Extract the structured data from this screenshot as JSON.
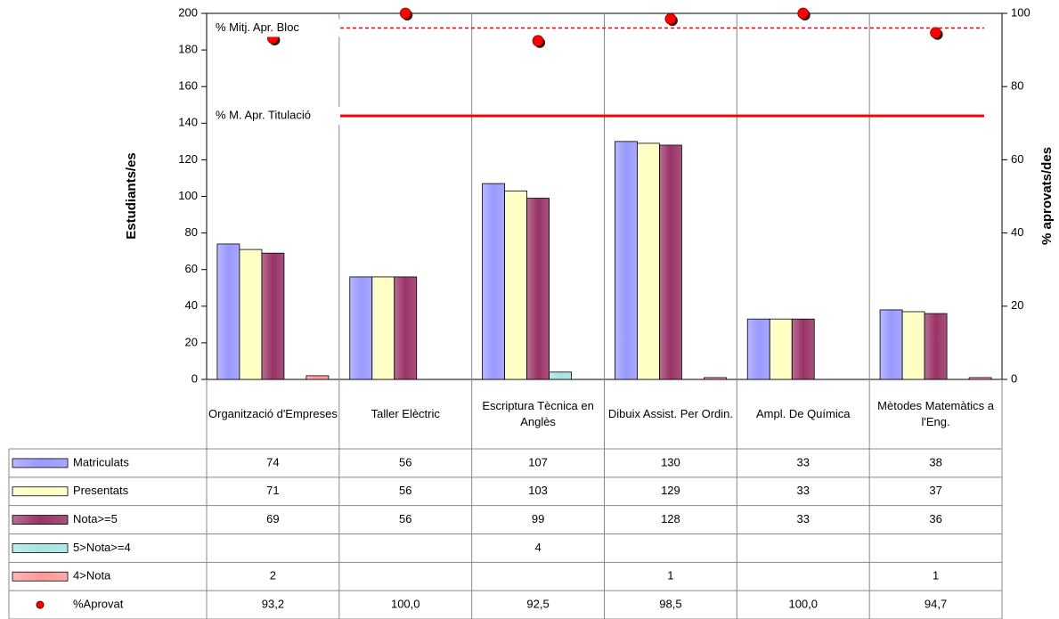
{
  "chart_data": {
    "type": "bar",
    "categories": [
      "Organització d'Empreses",
      "Taller Elèctric",
      "Escriptura Tècnica en Anglès",
      "Dibuix Assist. Per Ordin.",
      "Ampl. De Química",
      "Mètodes Matemàtics a l'Eng."
    ],
    "series": [
      {
        "name": "Matriculats",
        "color": "#9999ff",
        "values": [
          74,
          56,
          107,
          130,
          33,
          38
        ]
      },
      {
        "name": "Presentats",
        "color": "#ffffc0",
        "values": [
          71,
          56,
          103,
          129,
          33,
          37
        ]
      },
      {
        "name": "Nota>=5",
        "color": "#993366",
        "values": [
          69,
          56,
          99,
          128,
          33,
          36
        ]
      },
      {
        "name": "5>Nota>=4",
        "color": "#a6e3e3",
        "values": [
          null,
          null,
          4,
          null,
          null,
          null
        ]
      },
      {
        "name": "4>Nota",
        "color": "#ff9999",
        "values": [
          2,
          null,
          null,
          1,
          null,
          1
        ]
      },
      {
        "name": "%Aprovat",
        "color": "#ff0000",
        "type": "scatter",
        "axis": "y2",
        "values": [
          93.2,
          100,
          92.5,
          98.5,
          100,
          94.7
        ],
        "value_labels": [
          "93,2",
          "100,0",
          "92,5",
          "98,5",
          "100,0",
          "94,7"
        ]
      }
    ],
    "reference_lines": [
      {
        "name": "% Mitj. Apr. Bloc",
        "value": 96,
        "axis": "y2",
        "style": "dashed",
        "color": "#ff0000"
      },
      {
        "name": "% M. Apr. Titulació",
        "value": 72,
        "axis": "y2",
        "style": "solid",
        "color": "#ff0000"
      }
    ],
    "y_label": "Estudiants/es",
    "y2_label": "% aprovats/des",
    "ylim": [
      0,
      200
    ],
    "yticks": [
      0,
      20,
      40,
      60,
      80,
      100,
      120,
      140,
      160,
      180,
      200
    ],
    "y2lim": [
      0,
      100
    ],
    "y2ticks": [
      0,
      20,
      40,
      60,
      80,
      100
    ],
    "data_table": true
  }
}
